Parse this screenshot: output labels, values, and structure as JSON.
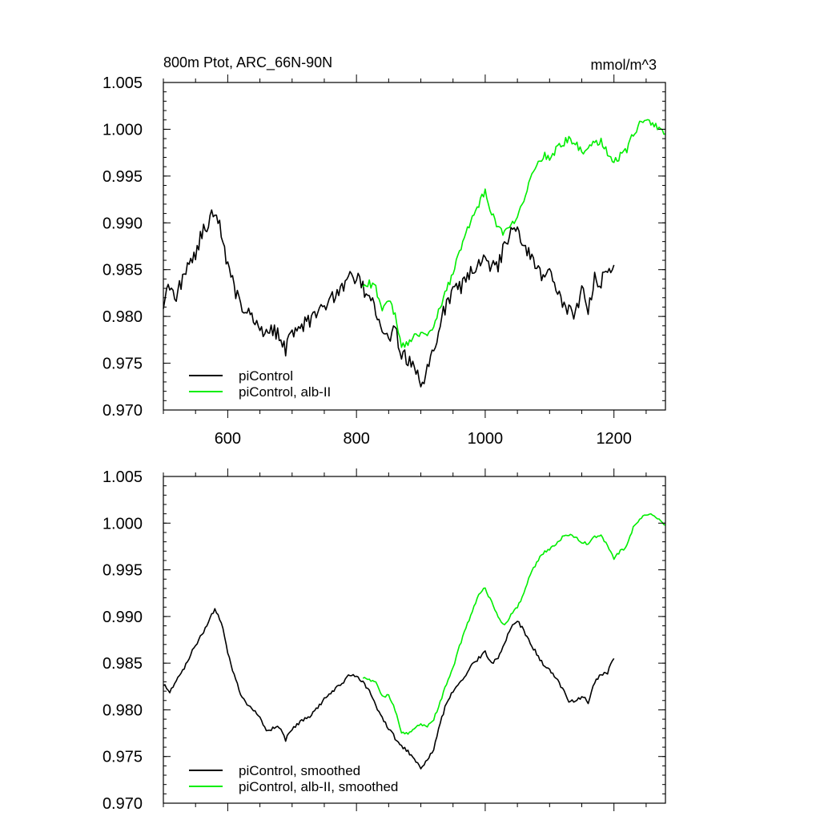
{
  "header": {
    "title": "800m Ptot, ARC_66N-90N",
    "units": "mmol/m^3"
  },
  "colors": {
    "control": "#000000",
    "albII": "#00ee00"
  },
  "chart_data": [
    {
      "type": "line",
      "title": "800m Ptot, ARC_66N-90N",
      "units_label": "mmol/m^3",
      "xlim": [
        500,
        1280
      ],
      "ylim": [
        0.97,
        1.005
      ],
      "xticks": [
        600,
        800,
        1000,
        1200
      ],
      "xtick_labels": [
        "600",
        "800",
        "1000",
        "1200"
      ],
      "yticks": [
        0.97,
        0.975,
        0.98,
        0.985,
        0.99,
        0.995,
        1.0,
        1.005
      ],
      "ytick_labels": [
        "0.970",
        "0.975",
        "0.980",
        "0.985",
        "0.990",
        "0.995",
        "1.000",
        "1.005"
      ],
      "legend_position": "bottom-left",
      "series": [
        {
          "name": "piControl",
          "color": "#000000",
          "x": [
            500,
            510,
            520,
            530,
            540,
            550,
            560,
            570,
            580,
            590,
            600,
            610,
            620,
            630,
            640,
            650,
            660,
            670,
            680,
            690,
            700,
            710,
            720,
            730,
            740,
            750,
            760,
            770,
            780,
            790,
            800,
            810,
            820,
            830,
            840,
            850,
            860,
            870,
            880,
            890,
            900,
            910,
            920,
            930,
            940,
            950,
            960,
            970,
            980,
            990,
            1000,
            1010,
            1020,
            1030,
            1040,
            1050,
            1060,
            1070,
            1080,
            1090,
            1100,
            1110,
            1120,
            1130,
            1140,
            1150,
            1160,
            1170,
            1180,
            1190,
            1200
          ],
          "values": [
            0.9815,
            0.9832,
            0.9822,
            0.984,
            0.9858,
            0.9868,
            0.9888,
            0.99,
            0.9915,
            0.989,
            0.9855,
            0.983,
            0.9815,
            0.9803,
            0.98,
            0.979,
            0.9782,
            0.9785,
            0.978,
            0.9765,
            0.9785,
            0.9788,
            0.9792,
            0.9796,
            0.98,
            0.9812,
            0.9818,
            0.9822,
            0.9832,
            0.984,
            0.9842,
            0.983,
            0.9822,
            0.9805,
            0.979,
            0.9775,
            0.9785,
            0.9762,
            0.9752,
            0.9745,
            0.973,
            0.9742,
            0.9762,
            0.9792,
            0.9815,
            0.9825,
            0.983,
            0.9838,
            0.985,
            0.9858,
            0.9868,
            0.9852,
            0.9855,
            0.9875,
            0.9895,
            0.9888,
            0.9875,
            0.9868,
            0.9855,
            0.9842,
            0.9845,
            0.983,
            0.9815,
            0.9805,
            0.98,
            0.983,
            0.981,
            0.984,
            0.9838,
            0.9845,
            0.9855
          ]
        },
        {
          "name": "piControl, alb-II",
          "color": "#00ee00",
          "x": [
            810,
            820,
            830,
            840,
            850,
            860,
            870,
            880,
            890,
            900,
            910,
            920,
            930,
            940,
            950,
            960,
            970,
            980,
            990,
            1000,
            1010,
            1020,
            1030,
            1040,
            1050,
            1060,
            1070,
            1080,
            1090,
            1100,
            1110,
            1120,
            1130,
            1140,
            1150,
            1160,
            1170,
            1180,
            1190,
            1200,
            1210,
            1220,
            1230,
            1240,
            1250,
            1260,
            1270,
            1280
          ],
          "values": [
            0.9835,
            0.9835,
            0.983,
            0.9805,
            0.982,
            0.98,
            0.977,
            0.9772,
            0.9778,
            0.9782,
            0.978,
            0.979,
            0.981,
            0.983,
            0.9845,
            0.987,
            0.9888,
            0.9905,
            0.992,
            0.9935,
            0.991,
            0.9895,
            0.9888,
            0.99,
            0.9905,
            0.9925,
            0.9945,
            0.996,
            0.9972,
            0.997,
            0.9978,
            0.9985,
            0.999,
            0.9985,
            0.9975,
            0.9978,
            0.9985,
            0.9988,
            0.9975,
            0.9965,
            0.9972,
            0.9978,
            0.9995,
            1.0005,
            1.001,
            1.0008,
            1.0002,
            0.9995
          ],
          "noise": 0.0008
        }
      ]
    },
    {
      "type": "line",
      "xlim": [
        500,
        1280
      ],
      "ylim": [
        0.97,
        1.005
      ],
      "xticks": [
        600,
        800,
        1000,
        1200
      ],
      "yticks": [
        0.97,
        0.975,
        0.98,
        0.985,
        0.99,
        0.995,
        1.0,
        1.005
      ],
      "ytick_labels": [
        "0.970",
        "0.975",
        "0.980",
        "0.985",
        "0.990",
        "0.995",
        "1.000",
        "1.005"
      ],
      "legend_position": "bottom-left",
      "series": [
        {
          "name": "piControl, smoothed",
          "color": "#000000",
          "x": [
            500,
            510,
            520,
            530,
            540,
            550,
            560,
            570,
            580,
            590,
            600,
            610,
            620,
            630,
            640,
            650,
            660,
            670,
            680,
            690,
            700,
            710,
            720,
            730,
            740,
            750,
            760,
            770,
            780,
            790,
            800,
            810,
            820,
            830,
            840,
            850,
            860,
            870,
            880,
            890,
            900,
            910,
            920,
            930,
            940,
            950,
            960,
            970,
            980,
            990,
            1000,
            1010,
            1020,
            1030,
            1040,
            1050,
            1060,
            1070,
            1080,
            1090,
            1100,
            1110,
            1120,
            1130,
            1140,
            1150,
            1160,
            1170,
            1180,
            1190,
            1200
          ],
          "values": [
            0.9828,
            0.982,
            0.983,
            0.9842,
            0.9856,
            0.987,
            0.988,
            0.9895,
            0.9908,
            0.9895,
            0.986,
            0.9838,
            0.9818,
            0.9805,
            0.98,
            0.9792,
            0.9778,
            0.978,
            0.9782,
            0.9768,
            0.978,
            0.9785,
            0.979,
            0.9795,
            0.9802,
            0.9812,
            0.9818,
            0.9824,
            0.983,
            0.9838,
            0.9836,
            0.983,
            0.982,
            0.9805,
            0.9792,
            0.978,
            0.977,
            0.9762,
            0.9755,
            0.9748,
            0.9738,
            0.9745,
            0.9758,
            0.9785,
            0.9808,
            0.982,
            0.9828,
            0.9836,
            0.9848,
            0.9856,
            0.9862,
            0.985,
            0.9855,
            0.9872,
            0.9888,
            0.9895,
            0.9885,
            0.9872,
            0.986,
            0.9848,
            0.9842,
            0.9835,
            0.9822,
            0.981,
            0.9808,
            0.9815,
            0.9808,
            0.983,
            0.9838,
            0.984,
            0.9855
          ]
        },
        {
          "name": "piControl, alb-II, smoothed",
          "color": "#00ee00",
          "x": [
            810,
            820,
            830,
            840,
            850,
            860,
            870,
            880,
            890,
            900,
            910,
            920,
            930,
            940,
            950,
            960,
            970,
            980,
            990,
            1000,
            1010,
            1020,
            1030,
            1040,
            1050,
            1060,
            1070,
            1080,
            1090,
            1100,
            1110,
            1120,
            1130,
            1140,
            1150,
            1160,
            1170,
            1180,
            1190,
            1200,
            1210,
            1220,
            1230,
            1240,
            1250,
            1260,
            1270,
            1280
          ],
          "values": [
            0.9835,
            0.9832,
            0.983,
            0.9815,
            0.9815,
            0.98,
            0.9775,
            0.9775,
            0.978,
            0.9785,
            0.9782,
            0.979,
            0.9808,
            0.9828,
            0.9845,
            0.9868,
            0.9888,
            0.9905,
            0.9925,
            0.993,
            0.9915,
            0.99,
            0.989,
            0.9902,
            0.991,
            0.9925,
            0.9945,
            0.9958,
            0.9968,
            0.9972,
            0.9978,
            0.9985,
            0.9988,
            0.9985,
            0.998,
            0.9978,
            0.9985,
            0.9988,
            0.9975,
            0.9962,
            0.997,
            0.9975,
            0.9995,
            1.0005,
            1.001,
            1.0008,
            1.0005,
            0.9998
          ],
          "noise": 0.0003
        }
      ]
    }
  ]
}
